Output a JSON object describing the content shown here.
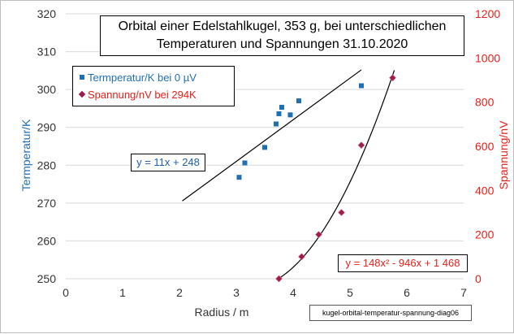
{
  "chart_data": {
    "type": "scatter",
    "title_line1": "Orbital einer Edelstahlkugel, 353 g,  bei unterschiedlichen",
    "title_line2": "Temperaturen und Spannungen 31.10.2020",
    "xlabel": "Radius / m",
    "ylabel_left": "Termperatur/K",
    "ylabel_right": "Spannung/nV",
    "xlim": [
      0,
      7
    ],
    "ylim_left": [
      250,
      320
    ],
    "ylim_right": [
      0,
      1200
    ],
    "x_ticks": [
      "0",
      "1",
      "2",
      "3",
      "4",
      "5",
      "6",
      "7"
    ],
    "y_ticks_left": [
      "250",
      "260",
      "270",
      "280",
      "290",
      "300",
      "310",
      "320"
    ],
    "y_ticks_right": [
      "0",
      "200",
      "400",
      "600",
      "800",
      "1000",
      "1200"
    ],
    "grid": "horizontal",
    "legend_placement": "top-left",
    "series": [
      {
        "name": "Termperatur/K bei 0 µV",
        "axis": "left",
        "color": "#1f6fb4",
        "marker": "square",
        "x": [
          3.05,
          3.15,
          3.5,
          3.7,
          3.75,
          3.8,
          3.95,
          4.1,
          5.2
        ],
        "y": [
          276.8,
          280.6,
          284.7,
          290.9,
          293.6,
          295.3,
          293.3,
          297.0,
          301.0
        ]
      },
      {
        "name": "Spannung/nV bei 294K",
        "axis": "right",
        "color": "#9a1f4a",
        "marker": "diamond",
        "x": [
          3.75,
          4.15,
          4.45,
          4.85,
          5.2,
          5.75
        ],
        "y": [
          0,
          100,
          200,
          300,
          605,
          910
        ]
      }
    ],
    "trendlines": [
      {
        "series": 0,
        "type": "linear",
        "slope": 11,
        "intercept": 248,
        "x_range": [
          2.05,
          5.2
        ],
        "color": "#000000",
        "equation": "y = 11x + 248"
      },
      {
        "series": 1,
        "type": "poly2",
        "a": 148,
        "b": -946,
        "c": 1468,
        "x_range": [
          3.76,
          5.78
        ],
        "color": "#000000",
        "equation": "y = 148x² - 946x + 1 468"
      }
    ]
  },
  "caption": "kugel-orbital-temperatur-spannung-diag06"
}
